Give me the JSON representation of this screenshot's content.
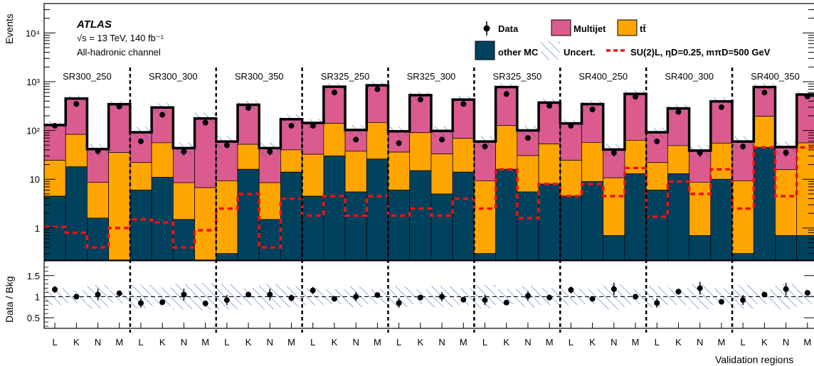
{
  "chart_data": {
    "type": "bar",
    "subtype": "stacked-histogram-log-with-ratio-panel",
    "experiment": "ATLAS",
    "energy_lumi": "√s = 13 TeV, 140 fb⁻¹",
    "channel": "All-hadronic channel",
    "ylabel": "Events",
    "ratio_ylabel": "Data / Bkg",
    "xlabel": "Validation regions",
    "y_scale": "log",
    "ylim": [
      0.22,
      40000
    ],
    "ratio_ylim": [
      0.25,
      1.85
    ],
    "ratio_ticks": [
      "0.5",
      "1",
      "1.5"
    ],
    "y_ticks": [
      {
        "value": 1,
        "label": "1"
      },
      {
        "value": 10,
        "label": "10"
      },
      {
        "value": 100,
        "label": "10²"
      },
      {
        "value": 1000,
        "label": "10³"
      },
      {
        "value": 10000,
        "label": "10⁴"
      }
    ],
    "regions": [
      "SR300_250",
      "SR300_300",
      "SR300_350",
      "SR325_250",
      "SR325_300",
      "SR325_350",
      "SR400_250",
      "SR400_300",
      "SR400_350"
    ],
    "sub_categories": [
      "L",
      "K",
      "N",
      "M"
    ],
    "legend": {
      "data": "Data",
      "multijet": "Multijet",
      "ttbar": "tt̄",
      "other_mc": "other MC",
      "uncert": "Uncert.",
      "signal": "SU(2)L, ηD=0.25, mπD=500 GeV"
    },
    "colors": {
      "multijet": "#dc5b8f",
      "ttbar": "#ffa500",
      "other_mc": "#00425e",
      "signal": "#ee1111",
      "uncert": "#2f55c9",
      "data": "#000000"
    },
    "series": [
      {
        "name": "other MC",
        "values": [
          4.5,
          18,
          1.6,
          0.22,
          6,
          11,
          1.5,
          0.22,
          0.3,
          16,
          1.5,
          14,
          4.5,
          30,
          5.5,
          26,
          6,
          15,
          5,
          14,
          0.3,
          16,
          5.5,
          8,
          4.5,
          9,
          0.7,
          13,
          6,
          13,
          0.7,
          10,
          0.3,
          45,
          0.7,
          0.7
        ]
      },
      {
        "name": "tt̄",
        "values": [
          20,
          65,
          7,
          35,
          16,
          45,
          7,
          6.5,
          9,
          36,
          7,
          26,
          28,
          110,
          32,
          120,
          30,
          75,
          28,
          55,
          9,
          110,
          25,
          45,
          20,
          48,
          10,
          50,
          16,
          36,
          8,
          45,
          9,
          150,
          15,
          55
        ]
      },
      {
        "name": "Multijet",
        "values": [
          105,
          370,
          33,
          310,
          70,
          240,
          35,
          170,
          50,
          285,
          35,
          130,
          110,
          650,
          65,
          700,
          60,
          440,
          65,
          360,
          50,
          650,
          70,
          320,
          115,
          290,
          30,
          500,
          70,
          235,
          30,
          340,
          50,
          580,
          30,
          490
        ]
      },
      {
        "name": "SU(2)L, ηD=0.25, mπD=500 GeV",
        "values": [
          1.05,
          0.8,
          0.4,
          1.0,
          1.5,
          1.3,
          0.4,
          0.9,
          2.5,
          5.0,
          0.4,
          4.0,
          1.8,
          4.5,
          1.8,
          4.5,
          1.8,
          2.5,
          1.8,
          4.0,
          2.5,
          16,
          1.6,
          8.0,
          4.5,
          8.0,
          4.5,
          17,
          1.7,
          9.0,
          5.0,
          16,
          2.5,
          45,
          4.5,
          45
        ]
      },
      {
        "name": "Data",
        "values": [
          125,
          350,
          38,
          310,
          60,
          210,
          37,
          145,
          50,
          290,
          37,
          125,
          125,
          600,
          65,
          700,
          55,
          430,
          65,
          350,
          47,
          560,
          70,
          320,
          125,
          270,
          35,
          490,
          60,
          240,
          35,
          300,
          47,
          600,
          35,
          500
        ]
      }
    ],
    "ratio_values": [
      1.17,
      1.0,
      1.05,
      1.08,
      0.85,
      0.87,
      1.05,
      0.84,
      0.92,
      1.05,
      1.05,
      0.97,
      1.15,
      0.95,
      1.0,
      1.04,
      0.85,
      0.98,
      1.0,
      0.93,
      0.92,
      0.86,
      1.02,
      0.98,
      1.16,
      0.95,
      1.18,
      1.0,
      0.85,
      1.12,
      1.2,
      0.88,
      0.92,
      1.05,
      1.18,
      1.09
    ],
    "ratio_errors": [
      0.08,
      0.04,
      0.14,
      0.05,
      0.11,
      0.06,
      0.14,
      0.07,
      0.12,
      0.05,
      0.14,
      0.08,
      0.08,
      0.04,
      0.11,
      0.03,
      0.11,
      0.04,
      0.11,
      0.05,
      0.12,
      0.04,
      0.11,
      0.05,
      0.08,
      0.05,
      0.15,
      0.04,
      0.11,
      0.06,
      0.15,
      0.05,
      0.12,
      0.04,
      0.15,
      0.04
    ],
    "uncert_rel": [
      0.2,
      0.15,
      0.28,
      0.15,
      0.28,
      0.22,
      0.3,
      0.32,
      0.3,
      0.2,
      0.3,
      0.25,
      0.2,
      0.18,
      0.25,
      0.18,
      0.25,
      0.18,
      0.25,
      0.2,
      0.28,
      0.18,
      0.25,
      0.2,
      0.2,
      0.18,
      0.3,
      0.18,
      0.25,
      0.2,
      0.3,
      0.2,
      0.28,
      0.18,
      0.3,
      0.18
    ]
  }
}
